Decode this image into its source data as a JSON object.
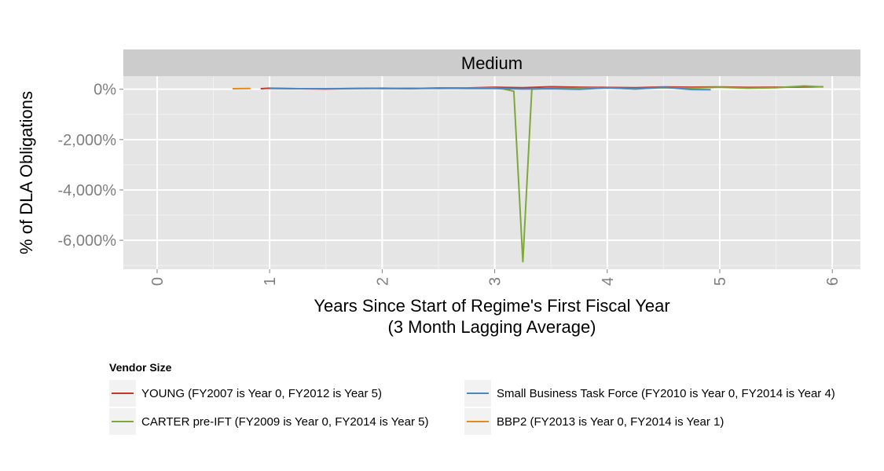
{
  "chart_data": {
    "type": "line",
    "facet_label": "Medium",
    "xlabel": "Years Since Start of Regime's First Fiscal Year",
    "xlabel_line2": "(3 Month Lagging Average)",
    "ylabel": "% of DLA Obligations",
    "xlim": [
      -0.3,
      6.25
    ],
    "ylim": [
      -7150,
      520
    ],
    "x_ticks": [
      0,
      1,
      2,
      3,
      4,
      5,
      6
    ],
    "x_tick_labels": [
      "0",
      "1",
      "2",
      "3",
      "4",
      "5",
      "6"
    ],
    "y_ticks": [
      0,
      -2000,
      -4000,
      -6000
    ],
    "y_tick_labels": [
      "0%",
      "-2,000%",
      "-4,000%",
      "-6,000%"
    ],
    "grid": true,
    "legend_title": "Vendor Size",
    "legend_position": "bottom",
    "series": [
      {
        "name": "YOUNG (FY2007 is Year 0, FY2012 is Year 5)",
        "color": "#c0392b",
        "x": [
          0.92,
          1.0,
          1.25,
          1.5,
          1.75,
          2.0,
          2.25,
          2.5,
          2.75,
          3.0,
          3.25,
          3.5,
          3.75,
          4.0,
          4.25,
          4.5,
          4.75,
          5.0,
          5.25,
          5.5,
          5.75,
          5.92
        ],
        "y": [
          20,
          40,
          20,
          10,
          30,
          40,
          30,
          50,
          50,
          80,
          60,
          100,
          80,
          70,
          60,
          90,
          80,
          90,
          70,
          80,
          90,
          100
        ]
      },
      {
        "name": "CARTER pre-IFT (FY2009 is Year 0, FY2014 is Year 5)",
        "color": "#7ea83a",
        "x": [
          1.92,
          2.0,
          2.25,
          2.5,
          2.75,
          3.0,
          3.08,
          3.17,
          3.25,
          3.33,
          3.5,
          3.75,
          4.0,
          4.25,
          4.5,
          4.75,
          5.0,
          5.25,
          5.5,
          5.75,
          5.92
        ],
        "y": [
          40,
          30,
          40,
          30,
          40,
          50,
          10,
          -80,
          -6850,
          10,
          30,
          40,
          50,
          20,
          60,
          50,
          80,
          40,
          60,
          130,
          90
        ]
      },
      {
        "name": "Small Business Task Force (FY2010 is Year 0, FY2014 is Year 4)",
        "color": "#4a86c8",
        "x": [
          1.0,
          1.25,
          1.5,
          1.75,
          2.0,
          2.25,
          2.5,
          2.75,
          3.0,
          3.25,
          3.5,
          3.75,
          4.0,
          4.25,
          4.5,
          4.75,
          4.92
        ],
        "y": [
          30,
          20,
          20,
          30,
          30,
          20,
          40,
          30,
          30,
          10,
          20,
          0,
          60,
          10,
          80,
          -10,
          -20
        ]
      },
      {
        "name": "BBP2 (FY2013 is Year 0, FY2014 is Year 1)",
        "color": "#e88a1a",
        "x": [
          0.67,
          0.83
        ],
        "y": [
          20,
          30
        ]
      }
    ]
  }
}
